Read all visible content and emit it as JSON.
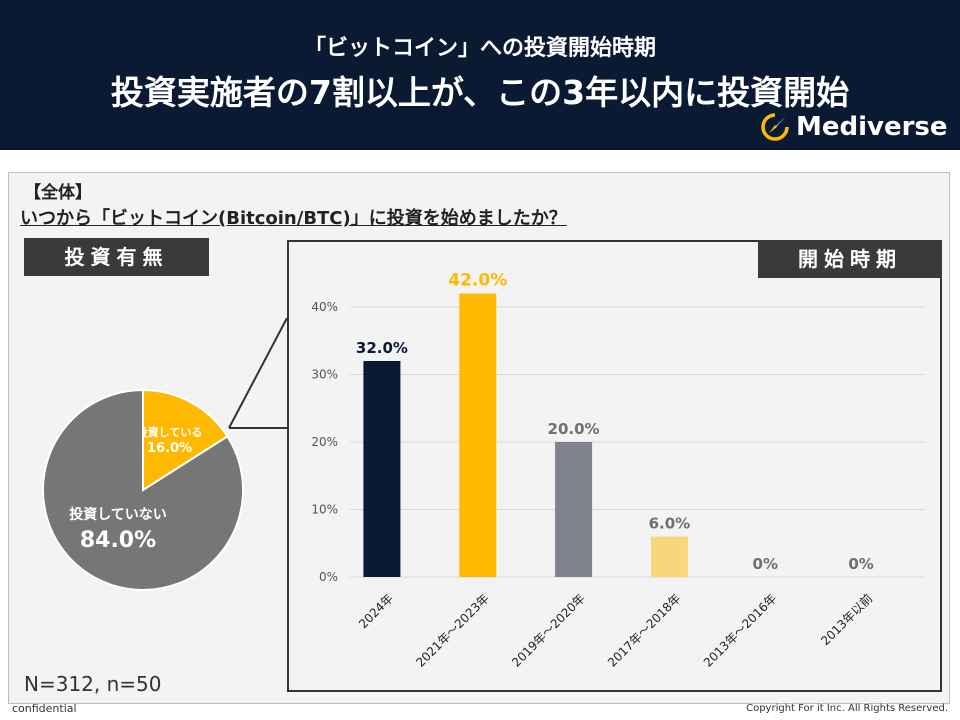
{
  "header": {
    "subtitle": "「ビットコイン」への投資開始時期",
    "title": "投資実施者の7割以上が、この3年以内に投資開始",
    "logo_text": "Mediverse",
    "logo_icon": "compass-icon",
    "bg_color": "#0b1a33"
  },
  "survey": {
    "group_label": "【全体】",
    "question": "いつから「ビットコイン(Bitcoin/BTC)」に投資を始めましたか？",
    "left_tag": "投資有無",
    "right_tag": "開始時期",
    "sample": "N=312, n=50"
  },
  "footer": {
    "confidential": "confidential",
    "copyright": "Copyright For it Inc. All Rights Reserved."
  },
  "chart_data": [
    {
      "type": "pie",
      "title": "投資有無",
      "slices": [
        {
          "label": "投資している",
          "value": 16.0,
          "value_label": "16.0%",
          "color": "#ffb900"
        },
        {
          "label": "投資していない",
          "value": 84.0,
          "value_label": "84.0%",
          "color": "#767676"
        }
      ]
    },
    {
      "type": "bar",
      "title": "開始時期",
      "categories": [
        "2024年",
        "2021年～2023年",
        "2019年～2020年",
        "2017年～2018年",
        "2013年～2016年",
        "2013年以前"
      ],
      "values": [
        32.0,
        42.0,
        20.0,
        6.0,
        0,
        0
      ],
      "value_labels": [
        "32.0%",
        "42.0%",
        "20.0%",
        "6.0%",
        "0%",
        "0%"
      ],
      "colors": [
        "#0b1a33",
        "#ffb900",
        "#7f848c",
        "#f8d77c",
        "#cccccc",
        "#cccccc"
      ],
      "label_colors": [
        "#0b1a33",
        "#ffb900",
        "#6d6f73",
        "#6d6f73",
        "#6d6f73",
        "#6d6f73"
      ],
      "ylim": [
        0,
        40
      ],
      "yticks": [
        "0%",
        "10%",
        "20%",
        "30%",
        "40%"
      ],
      "ytick_values": [
        0,
        10,
        20,
        30,
        40
      ],
      "grid": true
    }
  ]
}
